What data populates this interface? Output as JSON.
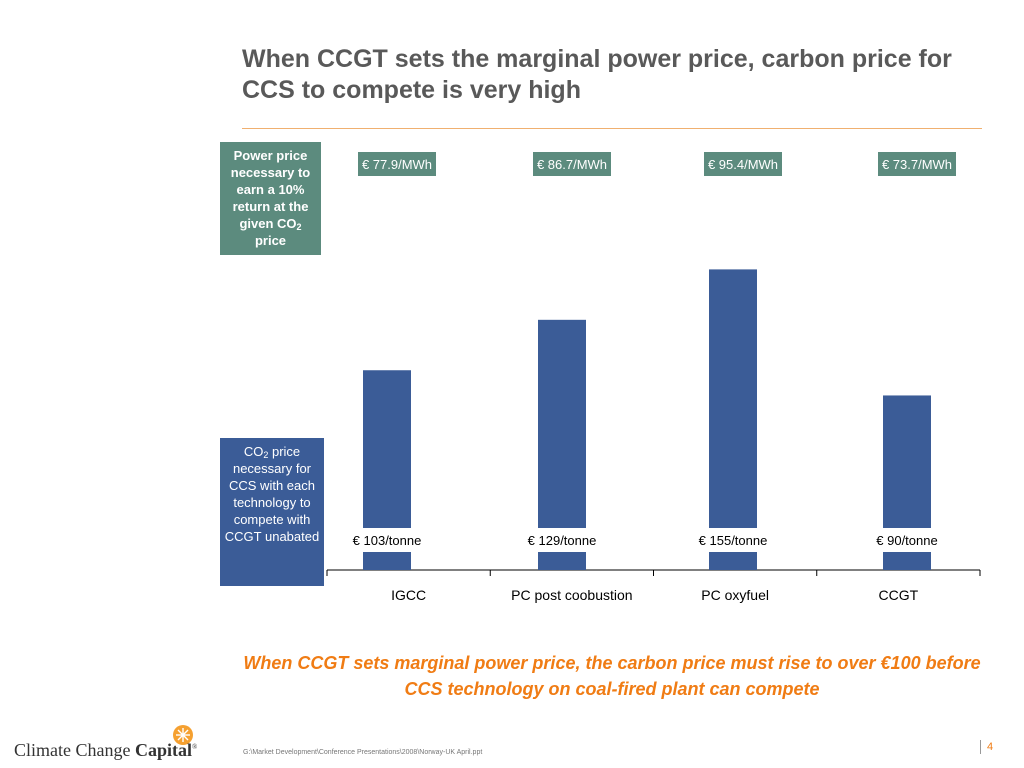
{
  "slide": {
    "title": "When CCGT sets the marginal power price, carbon price for CCS to compete is very high",
    "power_box": {
      "label_prefix": "Power price necessary to earn a 10% return at the given CO",
      "label_sub": "2",
      "label_suffix": " price"
    },
    "co2_box": {
      "label_prefix": "CO",
      "label_sub": "2",
      "label_suffix": " price necessary for CCS with each technology to compete with CCGT unabated"
    },
    "conclusion": "When CCGT sets marginal power price, the carbon price must rise to over €100 before CCS technology on coal-fired plant can compete",
    "footer_path": "G:\\Market Development\\Conference Presentations\\2008\\Norway-UK April.ppt",
    "page_number": "4",
    "logo": {
      "text_regular": "Climate Change ",
      "text_bold": "Capital",
      "mark": "®"
    }
  },
  "colors": {
    "bar": "#3b5c97",
    "power_box_bg": "#5c8b7e",
    "co2_box_bg": "#3b5c97",
    "conclusion": "#f07c14",
    "title": "#595959",
    "logo_star": "#f5a030"
  },
  "chart_data": {
    "type": "bar",
    "categories": [
      "IGCC",
      "PC post coobustion",
      "PC oxyfuel",
      "CCGT"
    ],
    "values": [
      103,
      129,
      155,
      90
    ],
    "value_labels": [
      "€ 103/tonne",
      "€ 129/tonne",
      "€ 155/tonne",
      "€ 90/tonne"
    ],
    "power_prices": [
      "€ 77.9/MWh",
      "€ 86.7/MWh",
      "€ 95.4/MWh",
      "€ 73.7/MWh"
    ],
    "unit": "€/tonne",
    "title": "",
    "xlabel": "",
    "ylabel": "",
    "ylim": [
      0,
      165
    ],
    "grid": false
  }
}
